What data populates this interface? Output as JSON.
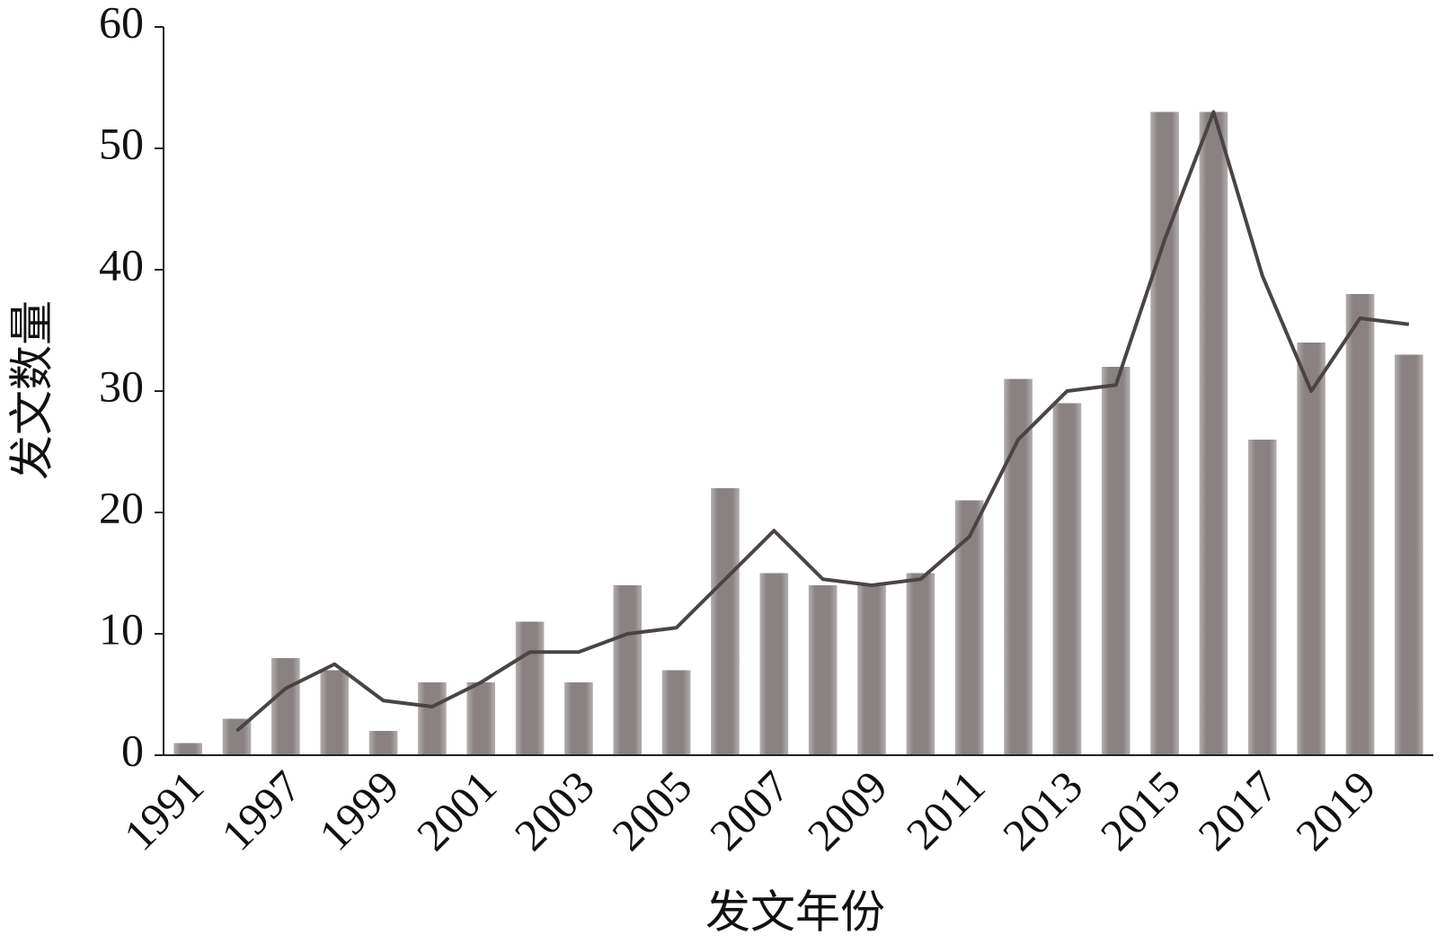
{
  "chart_data": {
    "type": "bar",
    "x_label": "发文年份",
    "y_label": "发文数量",
    "categories": [
      "1991",
      null,
      "1997",
      null,
      "1999",
      null,
      "2001",
      null,
      "2003",
      null,
      "2005",
      null,
      "2007",
      null,
      "2009",
      null,
      "2011",
      null,
      "2013",
      null,
      "2015",
      null,
      "2017",
      null,
      "2019",
      null
    ],
    "series": [
      {
        "type": "bar",
        "color": "#8a8282",
        "values": [
          1,
          3,
          8,
          7,
          2,
          6,
          6,
          11,
          6,
          14,
          7,
          22,
          15,
          14,
          14,
          15,
          21,
          31,
          29,
          32,
          53,
          53,
          26,
          34,
          38,
          33
        ]
      },
      {
        "type": "line",
        "color": "#4a4444",
        "values": [
          null,
          2,
          5.5,
          7.5,
          4.5,
          4,
          6,
          8.5,
          8.5,
          10,
          10.5,
          14.5,
          18.5,
          14.5,
          14,
          14.5,
          18,
          26,
          30,
          30.5,
          42.5,
          53,
          39.5,
          30,
          36,
          35.5
        ]
      }
    ],
    "ylim": [
      0,
      60
    ],
    "yticks": [
      0,
      10,
      20,
      30,
      40,
      50,
      60
    ],
    "grid": false
  }
}
